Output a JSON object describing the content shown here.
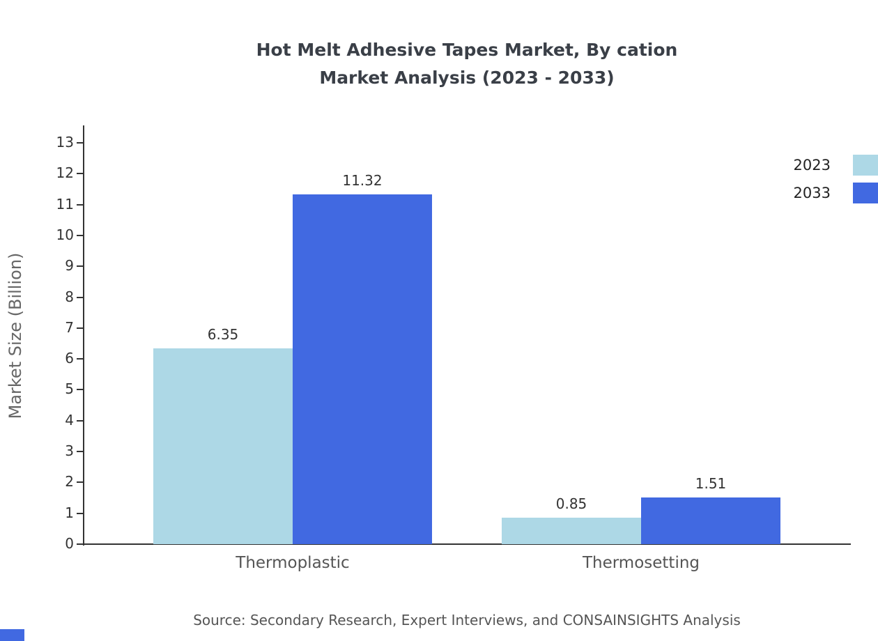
{
  "title": {
    "line1": "Hot Melt Adhesive Tapes Market, By cation",
    "line2": "Market Analysis (2023 - 2033)"
  },
  "chart_data": {
    "type": "bar",
    "categories": [
      "Thermoplastic",
      "Thermosetting"
    ],
    "series": [
      {
        "name": "2023",
        "color": "#add8e6",
        "values": [
          6.35,
          0.85
        ]
      },
      {
        "name": "2033",
        "color": "#4169e1",
        "values": [
          11.32,
          1.51
        ]
      }
    ],
    "title": "Hot Melt Adhesive Tapes Market, By cation Market Analysis (2023 - 2033)",
    "xlabel": "",
    "ylabel": "Market Size (Billion)",
    "ylim": [
      0,
      13
    ],
    "yticks": [
      0,
      1,
      2,
      3,
      4,
      5,
      6,
      7,
      8,
      9,
      10,
      11,
      12,
      13
    ],
    "grid": false,
    "legend_position": "top-right",
    "value_labels": [
      "6.35",
      "11.32",
      "0.85",
      "1.51"
    ]
  },
  "legend": {
    "items": [
      {
        "label": "2023",
        "color": "#add8e6"
      },
      {
        "label": "2033",
        "color": "#4169e1"
      }
    ]
  },
  "source": "Source: Secondary Research, Expert Interviews, and CONSAINSIGHTS Analysis",
  "colors": {
    "series_2023": "#add8e6",
    "series_2033": "#4169e1",
    "axis": "#333333",
    "title_text": "#3a3f47"
  }
}
